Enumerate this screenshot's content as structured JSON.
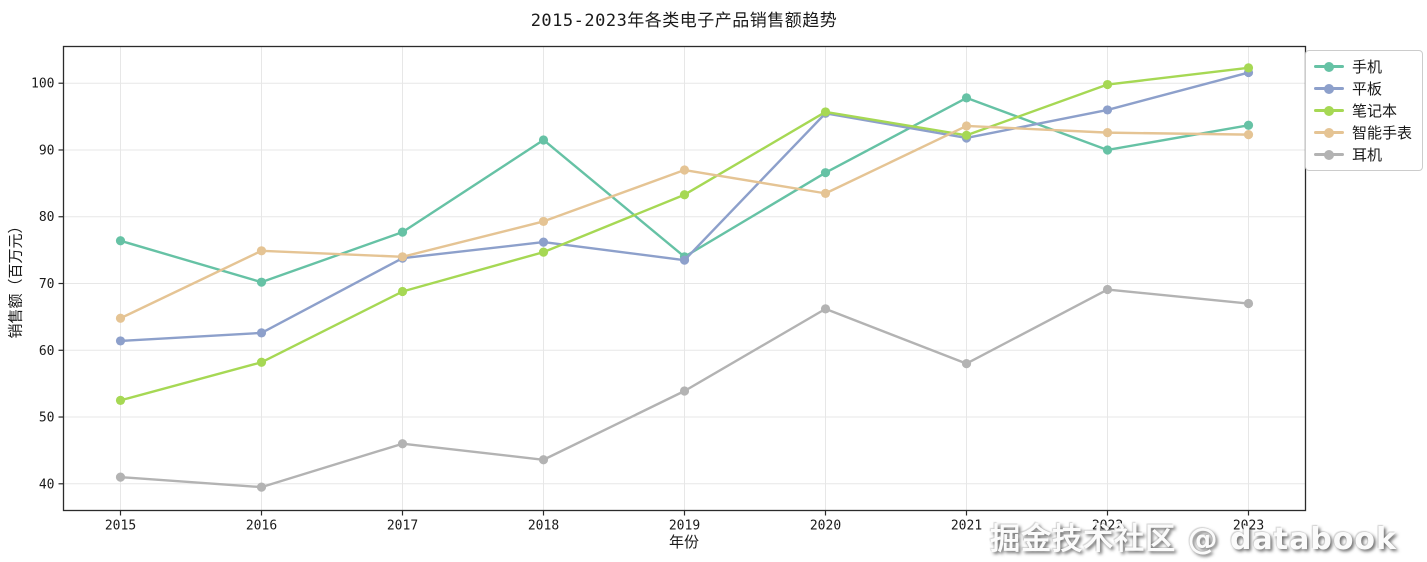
{
  "figure": {
    "watermark": "掘金技术社区 @ databook"
  },
  "chart_data": {
    "type": "line",
    "title": "2015-2023年各类电子产品销售额趋势",
    "xlabel": "年份",
    "ylabel": "销售额（百万元）",
    "categories": [
      "2015",
      "2016",
      "2017",
      "2018",
      "2019",
      "2020",
      "2021",
      "2022",
      "2023"
    ],
    "series": [
      {
        "name": "手机",
        "color": "#66c2a5",
        "values": [
          76.4,
          70.2,
          77.7,
          91.5,
          74.0,
          86.6,
          97.8,
          90.0,
          93.7
        ]
      },
      {
        "name": "平板",
        "color": "#8da0cb",
        "values": [
          61.4,
          62.6,
          73.8,
          76.2,
          73.5,
          95.5,
          91.8,
          96.0,
          101.6
        ]
      },
      {
        "name": "笔记本",
        "color": "#a6d854",
        "values": [
          52.5,
          58.2,
          68.8,
          74.7,
          83.3,
          95.7,
          92.2,
          99.8,
          102.3
        ]
      },
      {
        "name": "智能手表",
        "color": "#e5c494",
        "values": [
          64.8,
          74.9,
          74.0,
          79.3,
          87.0,
          83.5,
          93.6,
          92.6,
          92.3
        ]
      },
      {
        "name": "耳机",
        "color": "#b3b3b3",
        "values": [
          41.0,
          39.5,
          46.0,
          43.6,
          53.9,
          66.2,
          58.0,
          69.1,
          67.0
        ]
      }
    ],
    "yticks": [
      40,
      50,
      60,
      70,
      80,
      90,
      100
    ],
    "ylim": [
      36.0,
      105.5
    ],
    "grid": true,
    "legend_position": "outside-top-right",
    "colors": {
      "grid": "#e7e7e7",
      "spine": "#2b2b2b",
      "tick_label": "#1a1a1a"
    }
  }
}
